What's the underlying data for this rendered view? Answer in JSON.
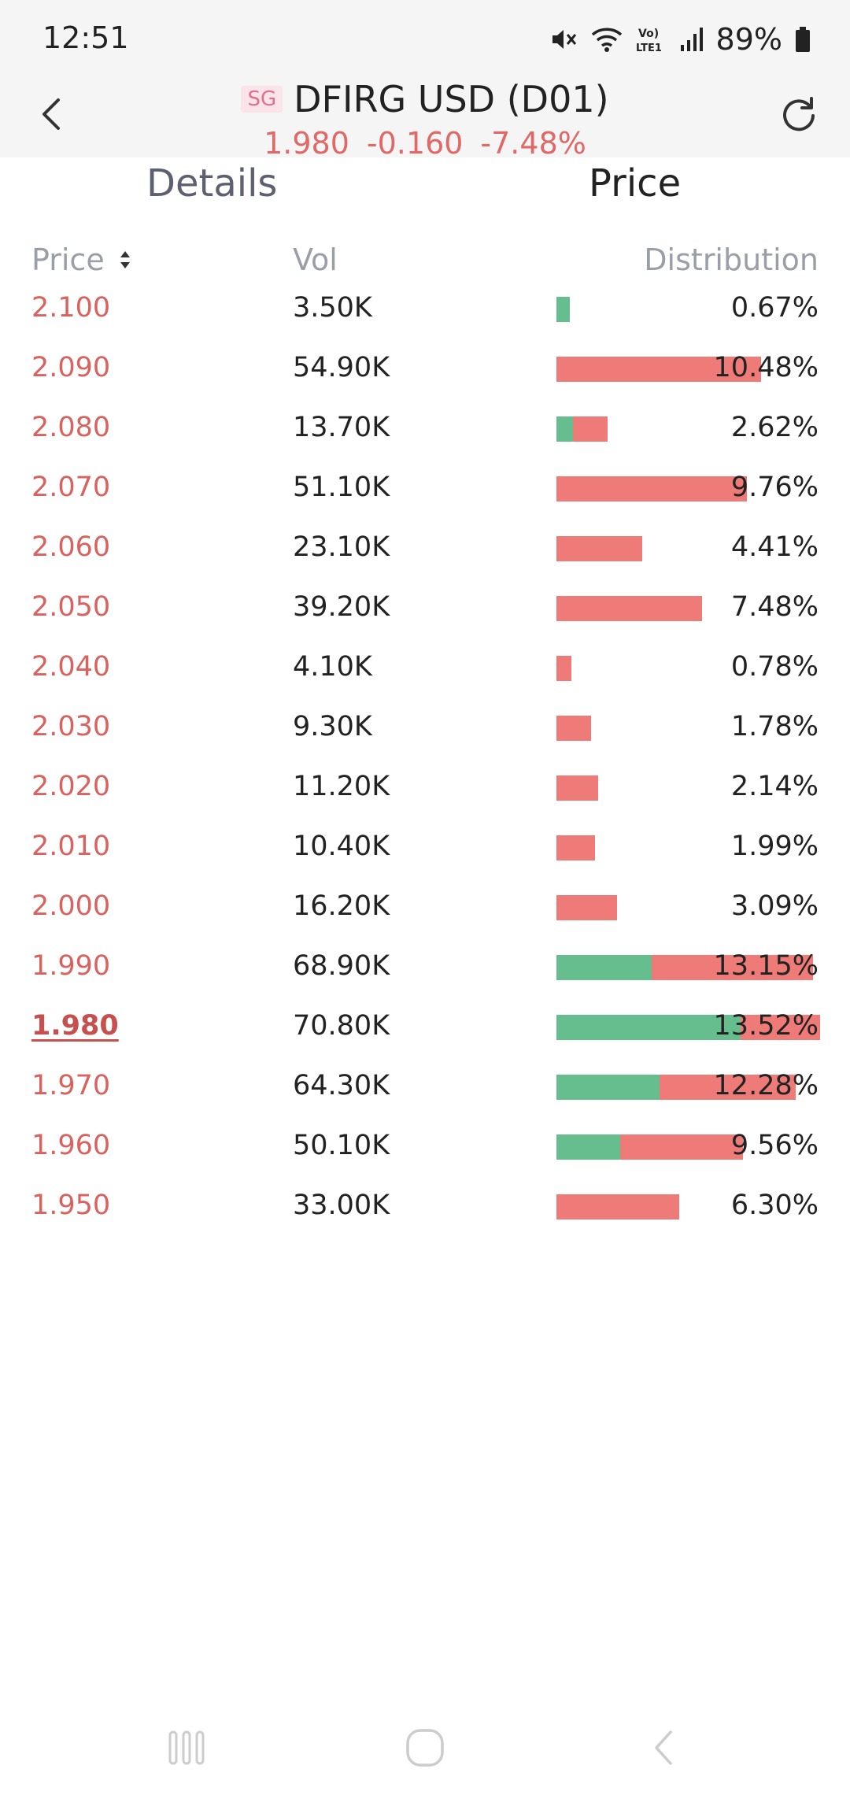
{
  "status_bar": {
    "time": "12:51",
    "battery": "89%",
    "icons": [
      "mute-icon",
      "wifi-icon",
      "volte-lte-icon",
      "signal-icon",
      "battery-icon"
    ]
  },
  "header": {
    "badge": "SG",
    "title": "DFIRG USD (D01)",
    "quote": {
      "price": "1.980",
      "change": "-0.160",
      "change_pct": "-7.48%"
    },
    "accent_down_color": "#e06866"
  },
  "tabs": [
    {
      "label": "Details",
      "active": false
    },
    {
      "label": "Price",
      "active": true
    }
  ],
  "columns": {
    "price": "Price",
    "vol": "Vol",
    "distribution": "Distribution"
  },
  "colors": {
    "buy": "#66bd8e",
    "sell": "#ee7b77"
  },
  "rows": [
    {
      "price": "2.100",
      "vol": "3.50K",
      "pct": "0.67%",
      "share": 0.67,
      "buy_ratio": 1.0
    },
    {
      "price": "2.090",
      "vol": "54.90K",
      "pct": "10.48%",
      "share": 10.48,
      "buy_ratio": 0.0
    },
    {
      "price": "2.080",
      "vol": "13.70K",
      "pct": "2.62%",
      "share": 2.62,
      "buy_ratio": 0.33
    },
    {
      "price": "2.070",
      "vol": "51.10K",
      "pct": "9.76%",
      "share": 9.76,
      "buy_ratio": 0.0
    },
    {
      "price": "2.060",
      "vol": "23.10K",
      "pct": "4.41%",
      "share": 4.41,
      "buy_ratio": 0.0
    },
    {
      "price": "2.050",
      "vol": "39.20K",
      "pct": "7.48%",
      "share": 7.48,
      "buy_ratio": 0.0
    },
    {
      "price": "2.040",
      "vol": "4.10K",
      "pct": "0.78%",
      "share": 0.78,
      "buy_ratio": 0.0
    },
    {
      "price": "2.030",
      "vol": "9.30K",
      "pct": "1.78%",
      "share": 1.78,
      "buy_ratio": 0.0
    },
    {
      "price": "2.020",
      "vol": "11.20K",
      "pct": "2.14%",
      "share": 2.14,
      "buy_ratio": 0.0
    },
    {
      "price": "2.010",
      "vol": "10.40K",
      "pct": "1.99%",
      "share": 1.99,
      "buy_ratio": 0.0
    },
    {
      "price": "2.000",
      "vol": "16.20K",
      "pct": "3.09%",
      "share": 3.09,
      "buy_ratio": 0.0
    },
    {
      "price": "1.990",
      "vol": "68.90K",
      "pct": "13.15%",
      "share": 13.15,
      "buy_ratio": 0.37
    },
    {
      "price": "1.980",
      "vol": "70.80K",
      "pct": "13.52%",
      "share": 13.52,
      "buy_ratio": 0.7,
      "current": true
    },
    {
      "price": "1.970",
      "vol": "64.30K",
      "pct": "12.28%",
      "share": 12.28,
      "buy_ratio": 0.43
    },
    {
      "price": "1.960",
      "vol": "50.10K",
      "pct": "9.56%",
      "share": 9.56,
      "buy_ratio": 0.34
    },
    {
      "price": "1.950",
      "vol": "33.00K",
      "pct": "6.30%",
      "share": 6.3,
      "buy_ratio": 0.0
    }
  ],
  "nav_bar": {
    "icons": [
      "recent-apps-icon",
      "home-icon",
      "back-nav-icon"
    ]
  }
}
